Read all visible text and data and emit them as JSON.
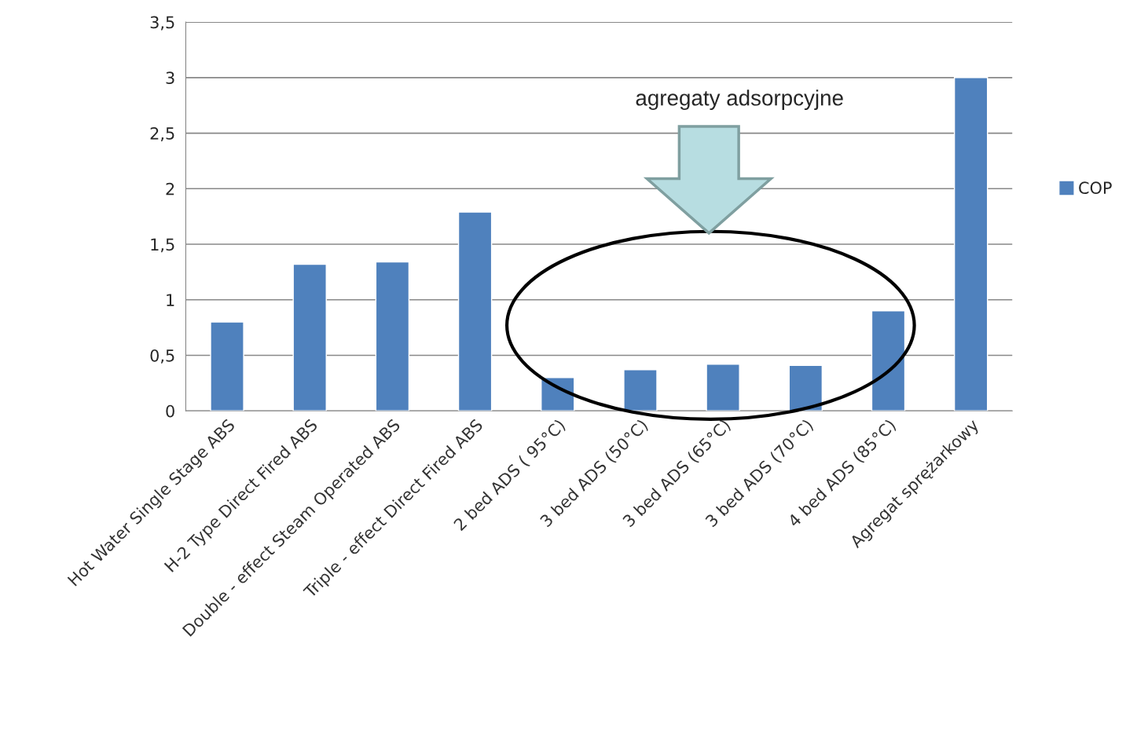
{
  "chart_data": {
    "type": "bar",
    "categories": [
      "Hot Water Single Stage ABS",
      "H-2 Type Direct Fired ABS",
      "Double - effect Steam Operated ABS",
      "Triple - effect Direct Fired ABS",
      "2 bed ADS ( 95°C)",
      "3 bed ADS (50°C)",
      "3 bed ADS (65°C)",
      "3 bed ADS (70°C)",
      "4 bed ADS (85°C)",
      "Agregat sprężarkowy"
    ],
    "series": [
      {
        "name": "COP",
        "color": "#4f81bd",
        "values": [
          0.8,
          1.32,
          1.34,
          1.79,
          0.3,
          0.37,
          0.42,
          0.41,
          0.9,
          3.0
        ]
      }
    ],
    "ylim": [
      0,
      3.5
    ],
    "yticks": [
      0,
      {
        "value": 0.5,
        "label": "0,5"
      },
      1,
      {
        "value": 1.5,
        "label": "1,5"
      },
      2,
      {
        "value": 2.5,
        "label": "2,5"
      },
      3,
      {
        "value": 3.5,
        "label": "3,5"
      }
    ],
    "grid": "y",
    "legend": "right",
    "annotations": [
      "agregaty adsorpcyjne"
    ]
  }
}
